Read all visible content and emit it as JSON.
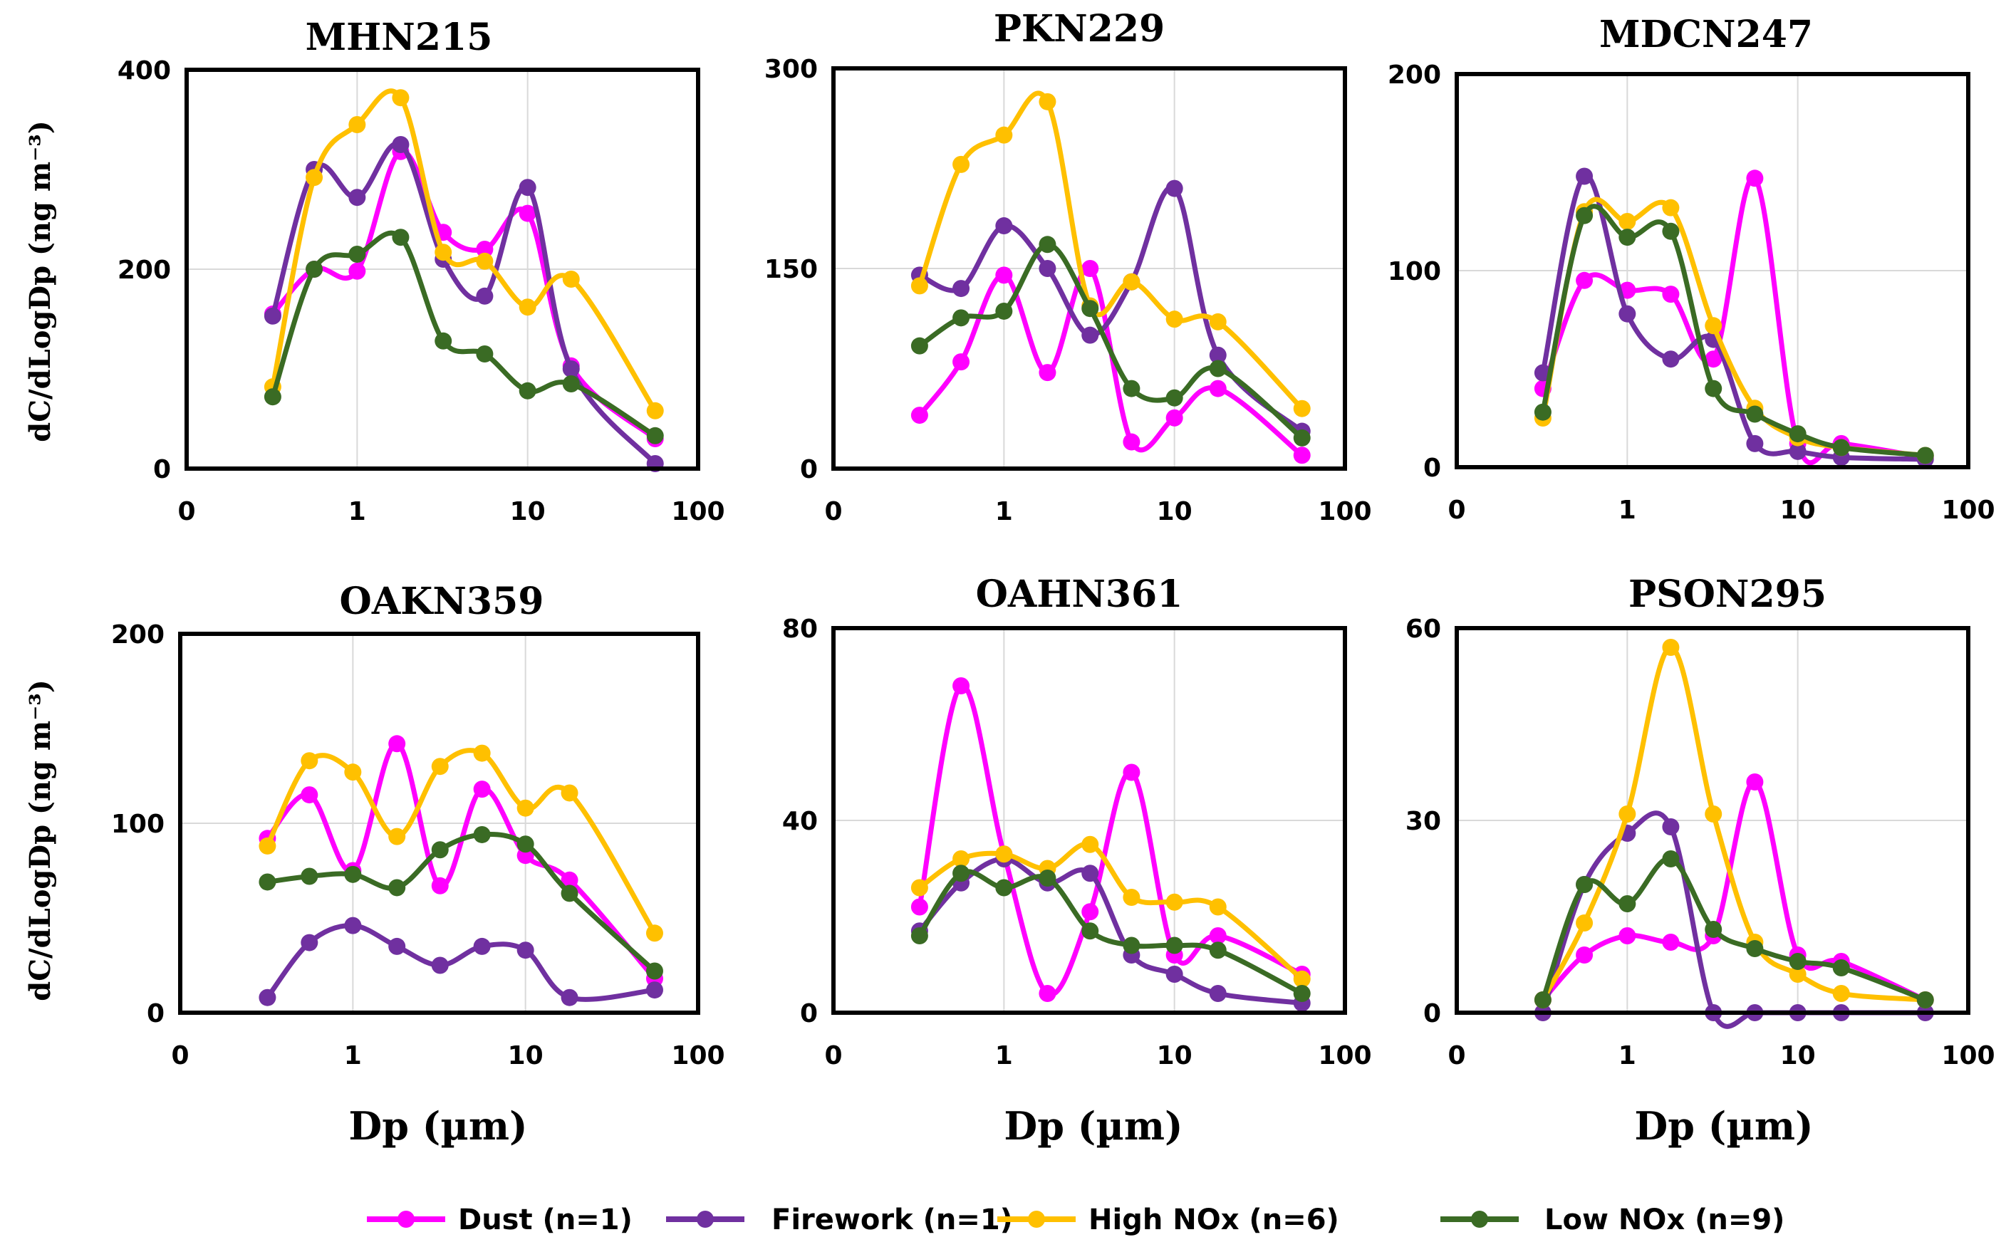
{
  "figure": {
    "y_axis_label": "dC/dLogDp  (ng m⁻³)",
    "x_axis_label": "Dp (µm)"
  },
  "colors": {
    "Dust": "#FF00FF",
    "Firework": "#7030A0",
    "High NOx": "#FFC000",
    "Low NOx": "#3A6B24"
  },
  "legend": [
    "Dust (n=1)",
    "Firework (n=1)",
    "High NOx (n=6)",
    "Low NOx (n=9)"
  ],
  "chart_data": [
    {
      "type": "line",
      "title": "MHN215",
      "xscale": "log",
      "xlabel": "",
      "ylabel": "dC/dLogDp  (ng m⁻³)",
      "xlim": [
        0.1,
        100
      ],
      "ylim": [
        0,
        400
      ],
      "xticks": [
        "0",
        "1",
        "10",
        "100"
      ],
      "yticks": [
        0,
        200,
        400
      ],
      "x": [
        0.32,
        0.56,
        1.0,
        1.8,
        3.2,
        5.6,
        10,
        18,
        56
      ],
      "series": [
        {
          "name": "Dust",
          "values": [
            155,
            200,
            198,
            318,
            237,
            220,
            256,
            103,
            30
          ]
        },
        {
          "name": "Firework",
          "values": [
            153,
            300,
            272,
            325,
            210,
            173,
            282,
            100,
            5
          ]
        },
        {
          "name": "High NOx",
          "values": [
            82,
            292,
            345,
            372,
            217,
            208,
            162,
            190,
            58
          ]
        },
        {
          "name": "Low NOx",
          "values": [
            72,
            200,
            215,
            232,
            128,
            115,
            78,
            85,
            33
          ]
        }
      ]
    },
    {
      "type": "line",
      "title": "PKN229",
      "xscale": "log",
      "xlabel": "",
      "ylabel": "",
      "xlim": [
        0.1,
        100
      ],
      "ylim": [
        0,
        300
      ],
      "xticks": [
        "0",
        "1",
        "10",
        "100"
      ],
      "yticks": [
        0,
        150,
        300
      ],
      "x": [
        0.32,
        0.56,
        1.0,
        1.8,
        3.2,
        5.6,
        10,
        18,
        56
      ],
      "series": [
        {
          "name": "Dust",
          "values": [
            40,
            80,
            145,
            72,
            150,
            20,
            38,
            60,
            10
          ]
        },
        {
          "name": "Firework",
          "values": [
            145,
            135,
            182,
            150,
            100,
            140,
            210,
            85,
            28
          ]
        },
        {
          "name": "High NOx",
          "values": [
            137,
            228,
            250,
            275,
            122,
            140,
            112,
            110,
            45
          ]
        },
        {
          "name": "Low NOx",
          "values": [
            92,
            113,
            118,
            168,
            120,
            60,
            53,
            75,
            23
          ]
        }
      ]
    },
    {
      "type": "line",
      "title": "MDCN247",
      "xscale": "log",
      "xlabel": "",
      "ylabel": "",
      "xlim": [
        0.1,
        100
      ],
      "ylim": [
        0,
        200
      ],
      "xticks": [
        "0",
        "1",
        "10",
        "100"
      ],
      "yticks": [
        0,
        100,
        200
      ],
      "x": [
        0.32,
        0.56,
        1.0,
        1.8,
        3.2,
        5.6,
        10,
        18,
        56
      ],
      "series": [
        {
          "name": "Dust",
          "values": [
            40,
            95,
            90,
            88,
            55,
            147,
            12,
            12,
            5
          ]
        },
        {
          "name": "Firework",
          "values": [
            48,
            148,
            78,
            55,
            65,
            12,
            8,
            5,
            4
          ]
        },
        {
          "name": "High NOx",
          "values": [
            25,
            130,
            125,
            132,
            72,
            30,
            15,
            10,
            6
          ]
        },
        {
          "name": "Low NOx",
          "values": [
            28,
            128,
            117,
            120,
            40,
            27,
            17,
            10,
            6
          ]
        }
      ]
    },
    {
      "type": "line",
      "title": "OAKN359",
      "xscale": "log",
      "xlabel": "Dp (µm)",
      "ylabel": "dC/dLogDp  (ng m⁻³)",
      "xlim": [
        0.1,
        100
      ],
      "ylim": [
        0,
        200
      ],
      "xticks": [
        "0",
        "1",
        "10",
        "100"
      ],
      "yticks": [
        0,
        100,
        200
      ],
      "x": [
        0.32,
        0.56,
        1.0,
        1.8,
        3.2,
        5.6,
        10,
        18,
        56
      ],
      "series": [
        {
          "name": "Dust",
          "values": [
            92,
            115,
            75,
            142,
            67,
            118,
            83,
            70,
            18
          ]
        },
        {
          "name": "Firework",
          "values": [
            8,
            37,
            46,
            35,
            25,
            35,
            33,
            8,
            12
          ]
        },
        {
          "name": "High NOx",
          "values": [
            88,
            133,
            127,
            93,
            130,
            137,
            108,
            116,
            42
          ]
        },
        {
          "name": "Low NOx",
          "values": [
            69,
            72,
            73,
            66,
            86,
            94,
            89,
            63,
            22
          ]
        }
      ]
    },
    {
      "type": "line",
      "title": "OAHN361",
      "xscale": "log",
      "xlabel": "Dp (µm)",
      "ylabel": "",
      "xlim": [
        0.1,
        100
      ],
      "ylim": [
        0,
        80
      ],
      "xticks": [
        "0",
        "1",
        "10",
        "100"
      ],
      "yticks": [
        0,
        40,
        80
      ],
      "x": [
        0.32,
        0.56,
        1.0,
        1.8,
        3.2,
        5.6,
        10,
        18,
        56
      ],
      "series": [
        {
          "name": "Dust",
          "values": [
            22,
            68,
            33,
            4,
            21,
            50,
            12,
            16,
            8
          ]
        },
        {
          "name": "Firework",
          "values": [
            17,
            27,
            32,
            27,
            29,
            12,
            8,
            4,
            2
          ]
        },
        {
          "name": "High NOx",
          "values": [
            26,
            32,
            33,
            30,
            35,
            24,
            23,
            22,
            7
          ]
        },
        {
          "name": "Low NOx",
          "values": [
            16,
            29,
            26,
            28,
            17,
            14,
            14,
            13,
            4
          ]
        }
      ]
    },
    {
      "type": "line",
      "title": "PSON295",
      "xscale": "log",
      "xlabel": "Dp (µm)",
      "ylabel": "",
      "xlim": [
        0.1,
        100
      ],
      "ylim": [
        0,
        60
      ],
      "xticks": [
        "0",
        "1",
        "10",
        "100"
      ],
      "yticks": [
        0,
        30,
        60
      ],
      "x": [
        0.32,
        0.56,
        1.0,
        1.8,
        3.2,
        5.6,
        10,
        18,
        56
      ],
      "series": [
        {
          "name": "Dust",
          "values": [
            2,
            9,
            12,
            11,
            12,
            36,
            9,
            8,
            2
          ]
        },
        {
          "name": "Firework",
          "values": [
            0,
            20,
            28,
            29,
            0,
            0,
            0,
            0,
            0
          ]
        },
        {
          "name": "High NOx",
          "values": [
            2,
            14,
            31,
            57,
            31,
            11,
            6,
            3,
            2
          ]
        },
        {
          "name": "Low NOx",
          "values": [
            2,
            20,
            17,
            24,
            13,
            10,
            8,
            7,
            2
          ]
        }
      ]
    }
  ]
}
